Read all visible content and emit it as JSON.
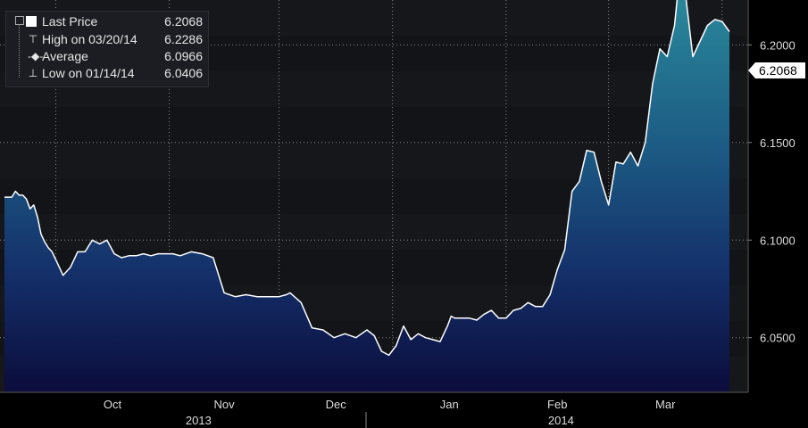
{
  "legend": {
    "items": [
      {
        "label": "Last Price",
        "value": "6.2068",
        "icon": "white-square"
      },
      {
        "label": "High on 03/20/14",
        "value": "6.2286",
        "icon": "high-marker-icon"
      },
      {
        "label": "Average",
        "value": "6.0966",
        "icon": "average-marker-icon"
      },
      {
        "label": "Low on 01/14/14",
        "value": "6.0406",
        "icon": "low-marker-icon"
      }
    ]
  },
  "last_price_tag": "6.2068",
  "colors": {
    "background": "#000000",
    "line": "#ffffff",
    "fill_top": "#2a8a9c",
    "fill_bottom": "#0b0c3c",
    "axis_text": "#dcdcdc"
  },
  "chart_data": {
    "type": "area",
    "title": "",
    "xlabel": "",
    "ylabel": "",
    "ylim": [
      6.022,
      6.223
    ],
    "grid": true,
    "legend_position": "top-left",
    "y_ticks": [
      "6.0500",
      "6.1000",
      "6.1500",
      "6.2000"
    ],
    "x_months": [
      "Oct",
      "Nov",
      "Dec",
      "Jan",
      "Feb",
      "Mar"
    ],
    "x_years": [
      "2013",
      "2014"
    ],
    "series": [
      {
        "name": "Last Price",
        "x": [
          "2013-09-17",
          "2013-09-18",
          "2013-09-19",
          "2013-09-20",
          "2013-09-21",
          "2013-09-22",
          "2013-09-23",
          "2013-09-24",
          "2013-09-25",
          "2013-09-26",
          "2013-09-27",
          "2013-09-28",
          "2013-09-29",
          "2013-09-30",
          "2013-10-01",
          "2013-10-03",
          "2013-10-05",
          "2013-10-07",
          "2013-10-09",
          "2013-10-11",
          "2013-10-13",
          "2013-10-15",
          "2013-10-17",
          "2013-10-19",
          "2013-10-21",
          "2013-10-23",
          "2013-10-25",
          "2013-10-27",
          "2013-10-29",
          "2013-10-31",
          "2013-11-02",
          "2013-11-04",
          "2013-11-07",
          "2013-11-10",
          "2013-11-13",
          "2013-11-16",
          "2013-11-19",
          "2013-11-22",
          "2013-11-25",
          "2013-11-28",
          "2013-12-01",
          "2013-12-03",
          "2013-12-04",
          "2013-12-07",
          "2013-12-10",
          "2013-12-13",
          "2013-12-16",
          "2013-12-19",
          "2013-12-22",
          "2013-12-25",
          "2013-12-27",
          "2013-12-29",
          "2013-12-31",
          "2014-01-02",
          "2014-01-04",
          "2014-01-06",
          "2014-01-08",
          "2014-01-09",
          "2014-01-10",
          "2014-01-12",
          "2014-01-14",
          "2014-01-16",
          "2014-01-17",
          "2014-01-18",
          "2014-01-20",
          "2014-01-22",
          "2014-01-24",
          "2014-01-26",
          "2014-01-28",
          "2014-01-30",
          "2014-02-01",
          "2014-02-03",
          "2014-02-05",
          "2014-02-07",
          "2014-02-09",
          "2014-02-11",
          "2014-02-13",
          "2014-02-15",
          "2014-02-17",
          "2014-02-19",
          "2014-02-21",
          "2014-02-23",
          "2014-02-25",
          "2014-02-27",
          "2014-03-01",
          "2014-03-03",
          "2014-03-05",
          "2014-03-07",
          "2014-03-09",
          "2014-03-11",
          "2014-03-13",
          "2014-03-15",
          "2014-03-17",
          "2014-03-19",
          "2014-03-20",
          "2014-03-22",
          "2014-03-24",
          "2014-03-26",
          "2014-03-28",
          "2014-03-30",
          "2014-04-01",
          "2014-04-03"
        ],
        "values": [
          6.122,
          6.122,
          6.122,
          6.125,
          6.123,
          6.123,
          6.121,
          6.116,
          6.118,
          6.112,
          6.103,
          6.099,
          6.096,
          6.094,
          6.09,
          6.082,
          6.086,
          6.094,
          6.094,
          6.1,
          6.098,
          6.1,
          6.093,
          6.091,
          6.092,
          6.092,
          6.093,
          6.092,
          6.093,
          6.093,
          6.093,
          6.092,
          6.094,
          6.093,
          6.091,
          6.073,
          6.071,
          6.072,
          6.071,
          6.071,
          6.071,
          6.072,
          6.073,
          6.068,
          6.055,
          6.054,
          6.05,
          6.052,
          6.05,
          6.054,
          6.051,
          6.043,
          6.041,
          6.046,
          6.056,
          6.049,
          6.052,
          6.051,
          6.05,
          6.049,
          6.048,
          6.056,
          6.061,
          6.06,
          6.06,
          6.06,
          6.059,
          6.062,
          6.064,
          6.06,
          6.06,
          6.064,
          6.065,
          6.068,
          6.066,
          6.066,
          6.072,
          6.085,
          6.095,
          6.125,
          6.13,
          6.146,
          6.145,
          6.13,
          6.118,
          6.14,
          6.139,
          6.145,
          6.138,
          6.15,
          6.18,
          6.198,
          6.194,
          6.21,
          6.2286,
          6.226,
          6.194,
          6.202,
          6.21,
          6.213,
          6.212,
          6.2068
        ]
      }
    ]
  }
}
